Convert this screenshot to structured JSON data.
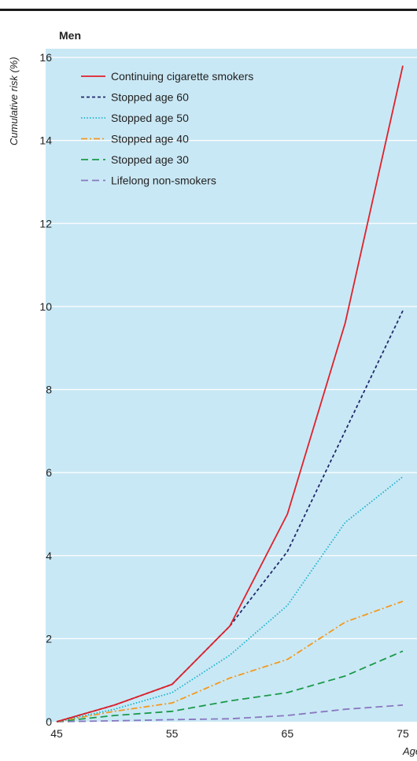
{
  "chart_data": {
    "type": "line",
    "title": "Men",
    "xlabel": "Age",
    "ylabel": "Cumulative risk (%)",
    "xlim": [
      45,
      75
    ],
    "ylim": [
      0,
      16
    ],
    "x_ticks": [
      45,
      55,
      65,
      75
    ],
    "y_ticks": [
      0,
      2,
      4,
      6,
      8,
      10,
      12,
      14,
      16
    ],
    "grid": "horizontal",
    "legend_position": "top-left",
    "background_color": "#c9e8f5",
    "x": [
      45,
      50,
      55,
      60,
      65,
      70,
      75
    ],
    "series": [
      {
        "name": "Continuing cigarette smokers",
        "color": "#e0202a",
        "dash": "solid",
        "values": [
          0,
          0.4,
          0.9,
          2.3,
          5.0,
          9.6,
          15.8
        ]
      },
      {
        "name": "Stopped age 60",
        "color": "#1f2a6b",
        "dash": "dashed-short",
        "values": [
          0,
          0.4,
          0.9,
          2.3,
          4.1,
          7.0,
          9.9
        ]
      },
      {
        "name": "Stopped age 50",
        "color": "#1ab3cc",
        "dash": "dotted",
        "values": [
          0,
          0.3,
          0.7,
          1.6,
          2.8,
          4.8,
          5.9
        ]
      },
      {
        "name": "Stopped age 40",
        "color": "#f39a1e",
        "dash": "dash-dot",
        "values": [
          0,
          0.25,
          0.45,
          1.05,
          1.5,
          2.4,
          2.9
        ]
      },
      {
        "name": "Stopped age 30",
        "color": "#1a9a4a",
        "dash": "dashed-long",
        "values": [
          0,
          0.15,
          0.25,
          0.5,
          0.7,
          1.1,
          1.7
        ]
      },
      {
        "name": "Lifelong non-smokers",
        "color": "#8878c0",
        "dash": "dashed-long",
        "values": [
          0,
          0.02,
          0.05,
          0.07,
          0.15,
          0.3,
          0.4
        ]
      }
    ]
  }
}
